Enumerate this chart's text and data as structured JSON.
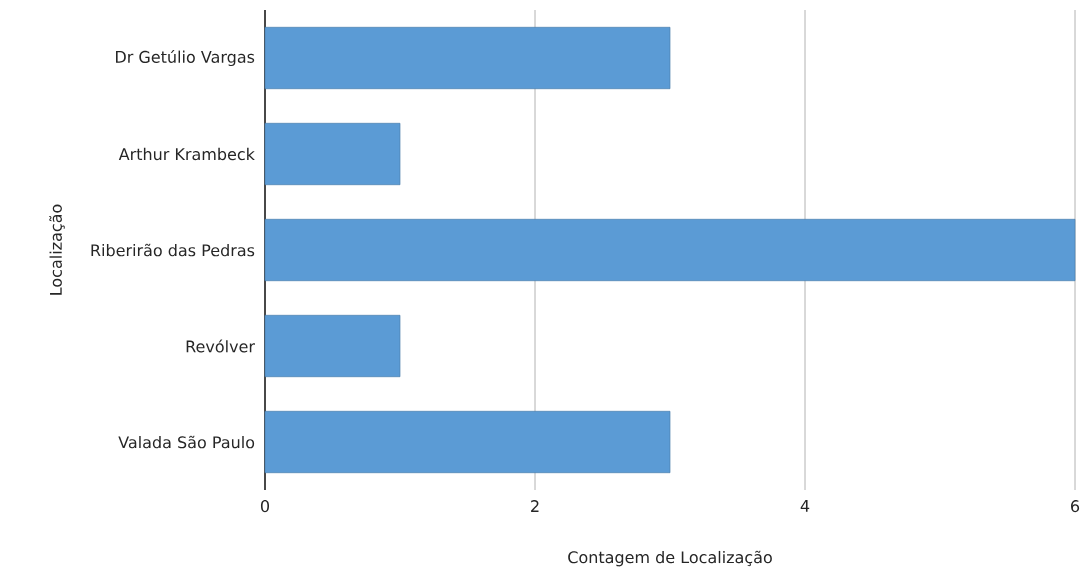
{
  "chart_data": {
    "type": "bar",
    "orientation": "horizontal",
    "xlabel": "Contagem de Localização",
    "ylabel": "Localização",
    "categories": [
      "Dr Getúlio Vargas",
      "Arthur Krambeck",
      "Riberirão das Pedras",
      "Revólver",
      "Valada São Paulo"
    ],
    "values": [
      3,
      1,
      6,
      1,
      3
    ],
    "color": "#5b9bd5",
    "xlim": [
      0,
      6
    ],
    "xticks": [
      0,
      2,
      4,
      6
    ],
    "grid": "x"
  }
}
